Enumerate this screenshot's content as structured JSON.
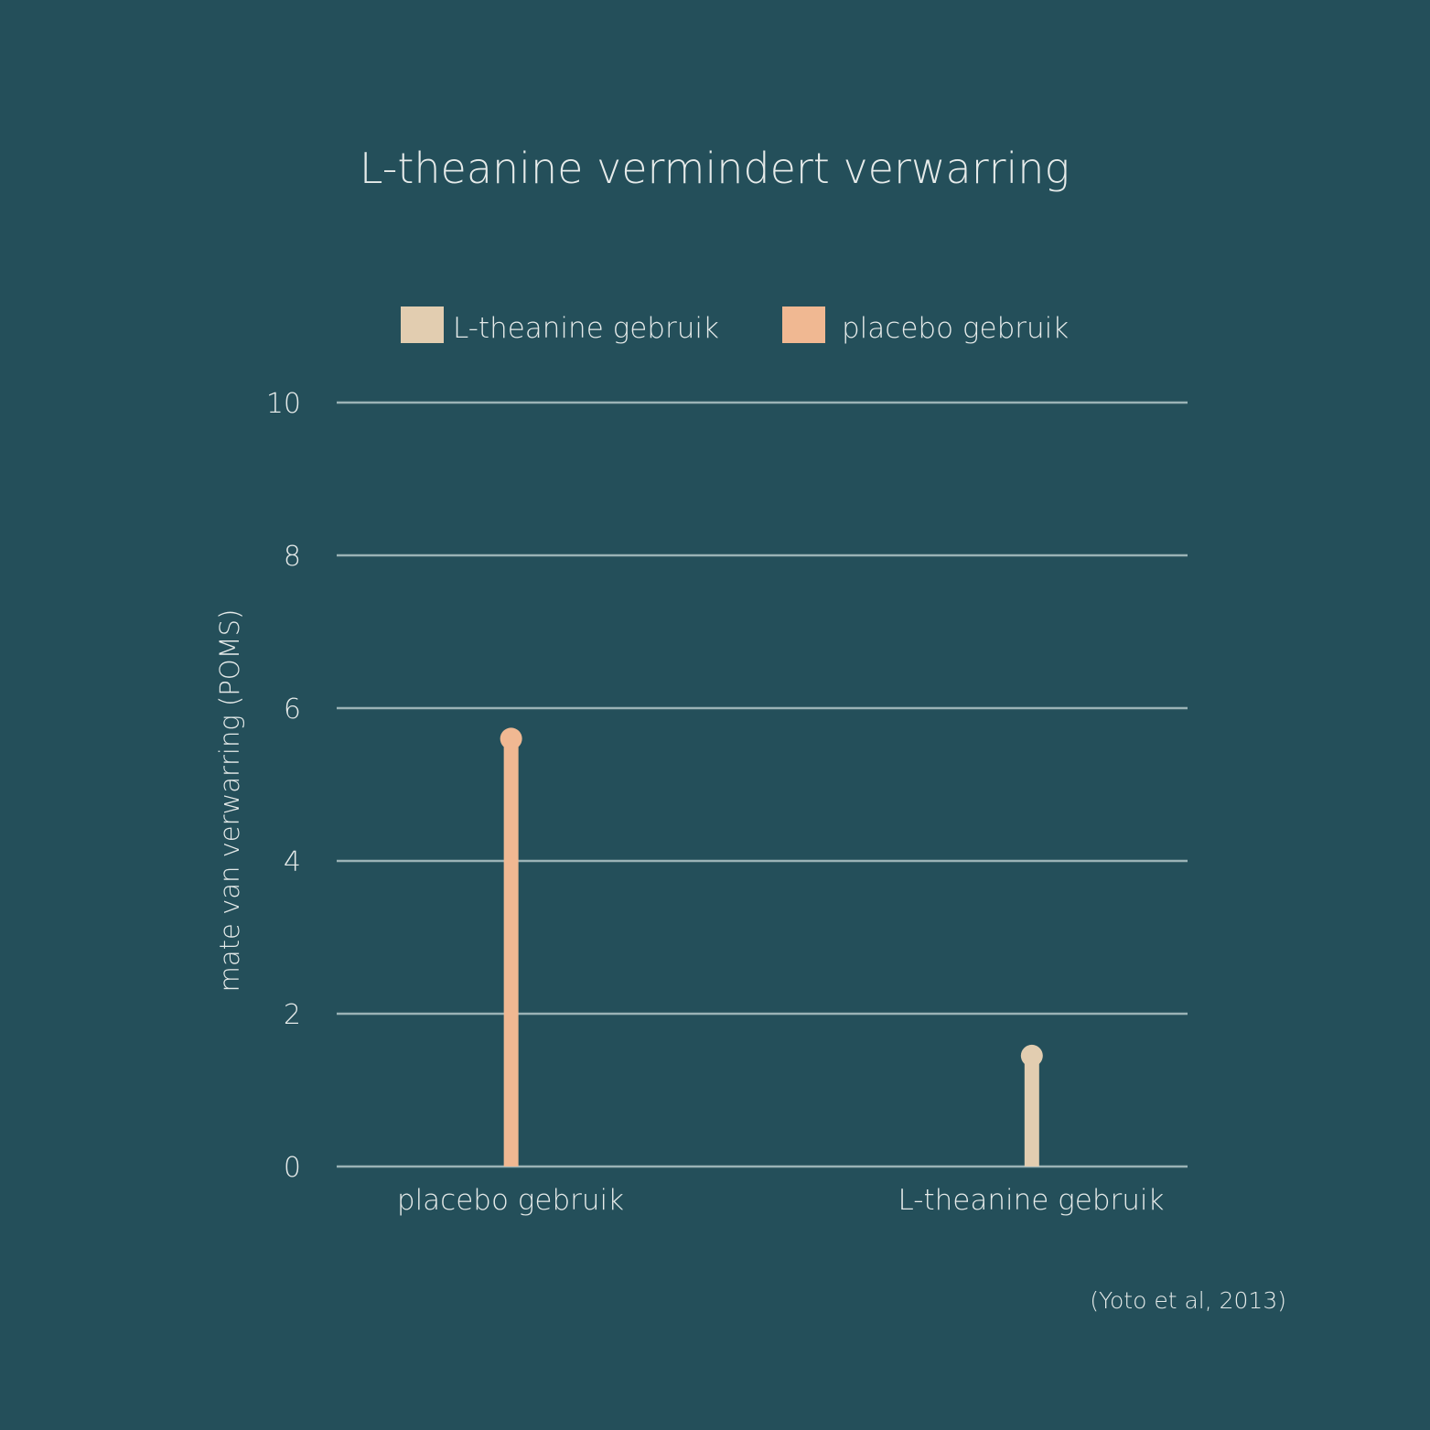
{
  "chart_data": {
    "type": "bar",
    "style": "lollipop",
    "title": "L-theanine vermindert verwarring",
    "ylabel": "mate van verwarring (POMS)",
    "xlabel": "",
    "ylim": [
      0,
      10
    ],
    "yticks": [
      "0",
      "2",
      "4",
      "6",
      "8",
      "10"
    ],
    "grid": true,
    "legend_position": "top",
    "legend": [
      {
        "label": "L-theanine gebruik",
        "color": "#e2cdb0"
      },
      {
        "label": "placebo gebruik",
        "color": "#f0b892"
      }
    ],
    "categories": [
      "placebo gebruik",
      "L-theanine gebruik"
    ],
    "values": [
      5.6,
      1.45
    ],
    "bar_colors": [
      "#f0b892",
      "#e2cdb0"
    ],
    "source": "(Yoto et al, 2013)"
  }
}
